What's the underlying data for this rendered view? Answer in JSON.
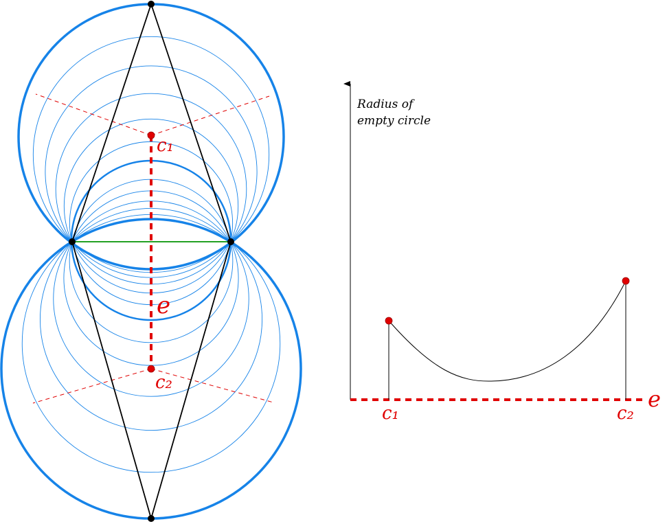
{
  "left_figure": {
    "center_labels": [
      "c₁",
      "c₂"
    ],
    "edge_label": "e"
  },
  "right_figure": {
    "axis_label_lines": [
      "Radius of",
      "empty circle"
    ],
    "x_labels": [
      "c₁",
      "c₂"
    ],
    "edge_label": "e"
  }
}
